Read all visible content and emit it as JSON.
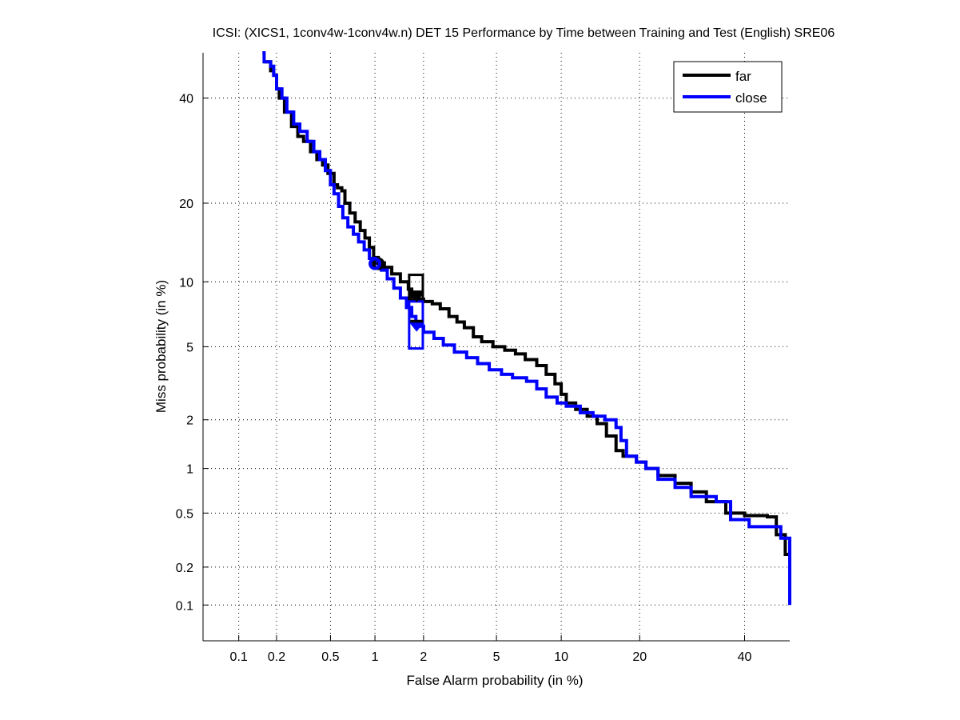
{
  "chart_data": {
    "type": "line",
    "scale": "probit",
    "title": "ICSI: (XICS1, 1conv4w-1conv4w.n) DET 15 Performance by Time between Training and Test (English) SRE06",
    "xlabel": "False Alarm probability (in %)",
    "ylabel": "Miss probability (in %)",
    "xlim": [
      0.05,
      50
    ],
    "ylim": [
      0.05,
      50
    ],
    "grid": true,
    "legend_position": "top-right",
    "x_ticks": [
      0.1,
      0.2,
      0.5,
      1,
      2,
      5,
      10,
      20,
      40
    ],
    "x_tick_labels": [
      "0.1",
      "0.2",
      "0.5",
      "1",
      "2",
      "5",
      "10",
      "20",
      "40"
    ],
    "y_ticks": [
      0.1,
      0.2,
      0.5,
      1,
      2,
      5,
      10,
      20,
      40
    ],
    "y_tick_labels": [
      "0.1",
      "0.2",
      "0.5",
      "1",
      "2",
      "5",
      "10",
      "20",
      "40"
    ],
    "series": [
      {
        "name": "far",
        "color": "#000000",
        "points": [
          [
            0.16,
            48
          ],
          [
            0.18,
            46
          ],
          [
            0.19,
            45
          ],
          [
            0.2,
            42
          ],
          [
            0.21,
            40
          ],
          [
            0.23,
            37
          ],
          [
            0.26,
            34
          ],
          [
            0.29,
            32
          ],
          [
            0.32,
            31
          ],
          [
            0.36,
            29
          ],
          [
            0.4,
            27.5
          ],
          [
            0.44,
            26.5
          ],
          [
            0.48,
            25
          ],
          [
            0.53,
            23
          ],
          [
            0.56,
            22.5
          ],
          [
            0.6,
            22
          ],
          [
            0.63,
            20
          ],
          [
            0.68,
            18.5
          ],
          [
            0.74,
            17.2
          ],
          [
            0.8,
            16
          ],
          [
            0.86,
            15
          ],
          [
            0.92,
            13.8
          ],
          [
            0.98,
            12.6
          ],
          [
            1.05,
            12.0
          ],
          [
            1.15,
            11.5
          ],
          [
            1.28,
            10.8
          ],
          [
            1.45,
            10.0
          ],
          [
            1.62,
            9.3
          ],
          [
            1.7,
            8.6
          ],
          [
            1.85,
            8.4
          ],
          [
            2.0,
            8.2
          ],
          [
            2.25,
            8.0
          ],
          [
            2.5,
            7.6
          ],
          [
            2.8,
            7.0
          ],
          [
            3.1,
            6.6
          ],
          [
            3.4,
            6.2
          ],
          [
            3.8,
            5.6
          ],
          [
            4.2,
            5.3
          ],
          [
            4.8,
            5.0
          ],
          [
            5.5,
            4.8
          ],
          [
            6.2,
            4.6
          ],
          [
            6.9,
            4.3
          ],
          [
            7.8,
            4.0
          ],
          [
            8.6,
            3.6
          ],
          [
            9.4,
            3.2
          ],
          [
            10.0,
            2.8
          ],
          [
            10.5,
            2.5
          ],
          [
            11.5,
            2.3
          ],
          [
            12.8,
            2.1
          ],
          [
            14.0,
            1.9
          ],
          [
            15.2,
            1.6
          ],
          [
            16.5,
            1.3
          ],
          [
            17.5,
            1.2
          ],
          [
            19.5,
            1.1
          ],
          [
            21,
            1.0
          ],
          [
            23,
            0.9
          ],
          [
            26,
            0.8
          ],
          [
            29,
            0.7
          ],
          [
            32,
            0.6
          ],
          [
            36,
            0.5
          ],
          [
            40,
            0.48
          ],
          [
            45,
            0.47
          ],
          [
            47,
            0.35
          ],
          [
            49,
            0.25
          ],
          [
            50,
            0.25
          ]
        ]
      },
      {
        "name": "close",
        "color": "#0000ff",
        "points": [
          [
            0.155,
            50
          ],
          [
            0.16,
            48
          ],
          [
            0.18,
            47
          ],
          [
            0.19,
            45
          ],
          [
            0.2,
            42
          ],
          [
            0.22,
            40
          ],
          [
            0.24,
            37
          ],
          [
            0.27,
            34.5
          ],
          [
            0.3,
            33
          ],
          [
            0.34,
            31
          ],
          [
            0.38,
            29
          ],
          [
            0.42,
            27.5
          ],
          [
            0.46,
            25.5
          ],
          [
            0.5,
            23
          ],
          [
            0.53,
            21.5
          ],
          [
            0.57,
            19.5
          ],
          [
            0.61,
            17.8
          ],
          [
            0.66,
            16.5
          ],
          [
            0.72,
            15.5
          ],
          [
            0.78,
            14.5
          ],
          [
            0.85,
            13.5
          ],
          [
            0.92,
            12.5
          ],
          [
            1.0,
            11.9
          ],
          [
            1.1,
            11.2
          ],
          [
            1.2,
            10.3
          ],
          [
            1.32,
            9.4
          ],
          [
            1.45,
            8.5
          ],
          [
            1.58,
            7.7
          ],
          [
            1.7,
            7.0
          ],
          [
            1.8,
            6.3
          ],
          [
            2.0,
            5.9
          ],
          [
            2.3,
            5.5
          ],
          [
            2.6,
            5.1
          ],
          [
            3.0,
            4.7
          ],
          [
            3.5,
            4.4
          ],
          [
            4.0,
            4.1
          ],
          [
            4.6,
            3.8
          ],
          [
            5.3,
            3.6
          ],
          [
            6.0,
            3.45
          ],
          [
            7.0,
            3.3
          ],
          [
            7.8,
            3.0
          ],
          [
            8.6,
            2.7
          ],
          [
            9.6,
            2.5
          ],
          [
            10.5,
            2.4
          ],
          [
            12.0,
            2.2
          ],
          [
            13.5,
            2.1
          ],
          [
            15.0,
            2.0
          ],
          [
            16.5,
            1.8
          ],
          [
            17.2,
            1.5
          ],
          [
            18.0,
            1.2
          ],
          [
            19.5,
            1.1
          ],
          [
            21.0,
            1.0
          ],
          [
            23,
            0.85
          ],
          [
            26,
            0.75
          ],
          [
            29,
            0.65
          ],
          [
            34,
            0.6
          ],
          [
            37,
            0.45
          ],
          [
            41,
            0.4
          ],
          [
            48,
            0.33
          ],
          [
            50,
            0.2
          ],
          [
            51,
            0.1
          ]
        ]
      }
    ],
    "markers": [
      {
        "series": "far",
        "type": "min-dcf-circle",
        "x": 1.05,
        "y": 11.9,
        "color": "#000000"
      },
      {
        "series": "close",
        "type": "min-dcf-circle",
        "x": 1.0,
        "y": 11.9,
        "color": "#0000ff"
      },
      {
        "series": "far",
        "type": "act-dcf-box",
        "x_range": [
          1.64,
          1.98
        ],
        "y_range": [
          8.35,
          10.7
        ],
        "color": "#000000"
      },
      {
        "series": "close",
        "type": "act-dcf-box",
        "x_range": [
          1.64,
          1.98
        ],
        "y_range": [
          4.9,
          8.2
        ],
        "color": "#0000ff"
      },
      {
        "series": "far",
        "type": "act-dcf-triangle",
        "x": 1.82,
        "y": 8.6,
        "color": "#000000"
      },
      {
        "series": "close",
        "type": "act-dcf-triangle",
        "x": 1.82,
        "y": 6.3,
        "color": "#0000ff"
      }
    ]
  }
}
